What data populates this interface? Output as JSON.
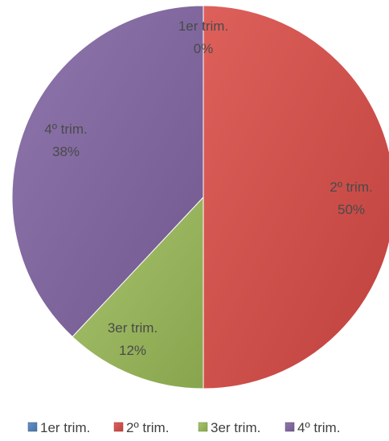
{
  "chart_data": {
    "type": "pie",
    "categories": [
      "1er trim.",
      "2º trim.",
      "3er trim.",
      "4º trim."
    ],
    "values": [
      0,
      50,
      12,
      38
    ],
    "percent_labels": [
      "0%",
      "50%",
      "12%",
      "38%"
    ],
    "colors": [
      "#4f81bd",
      "#d94a45",
      "#9bbb59",
      "#8064a2"
    ],
    "legend": {
      "position": "bottom",
      "entries": [
        "1er trim.",
        "2º trim.",
        "3er trim.",
        "4º trim."
      ]
    },
    "title": ""
  }
}
